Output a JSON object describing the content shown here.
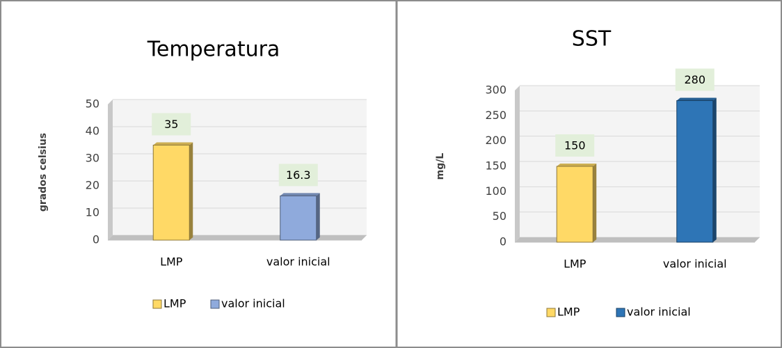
{
  "chart_data": [
    {
      "type": "bar",
      "title": "Temperatura",
      "y_label": "grados celsius",
      "categories": [
        "LMP",
        "valor inicial"
      ],
      "values": [
        35,
        16.3
      ],
      "colors": [
        "#ffd966",
        "#8faadc"
      ],
      "ylim": [
        0,
        50
      ],
      "yticks": [
        0,
        10,
        20,
        30,
        40,
        50
      ],
      "grid": true,
      "legend": "bottom"
    },
    {
      "type": "bar",
      "title": "SST",
      "y_label": "mg/L",
      "categories": [
        "LMP",
        "valor inicial"
      ],
      "values": [
        150,
        280
      ],
      "colors": [
        "#ffd966",
        "#2e75b6"
      ],
      "ylim": [
        0,
        300
      ],
      "yticks": [
        0,
        50,
        100,
        150,
        200,
        250,
        300
      ],
      "grid": true,
      "legend": "bottom"
    }
  ]
}
